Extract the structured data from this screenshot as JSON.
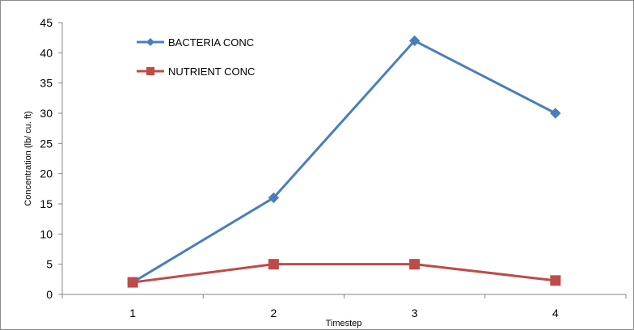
{
  "chart_data": {
    "type": "line",
    "categories": [
      "1",
      "2",
      "3",
      "4"
    ],
    "series": [
      {
        "name": "BACTERIA CONC",
        "values": [
          2,
          16,
          42,
          30
        ],
        "color": "#4a7ebb",
        "marker": "diamond"
      },
      {
        "name": "NUTRIENT CONC",
        "values": [
          2,
          5,
          5,
          2.3
        ],
        "color": "#be4b48",
        "marker": "square"
      }
    ],
    "title": "",
    "xlabel": "Timestep",
    "ylabel": "Concentration (lb/ cu. ft)",
    "ylim": [
      0,
      45
    ],
    "yticks": [
      "0",
      "5",
      "10",
      "15",
      "20",
      "25",
      "30",
      "35",
      "40",
      "45"
    ],
    "grid": false,
    "legend_position": "top-left"
  }
}
